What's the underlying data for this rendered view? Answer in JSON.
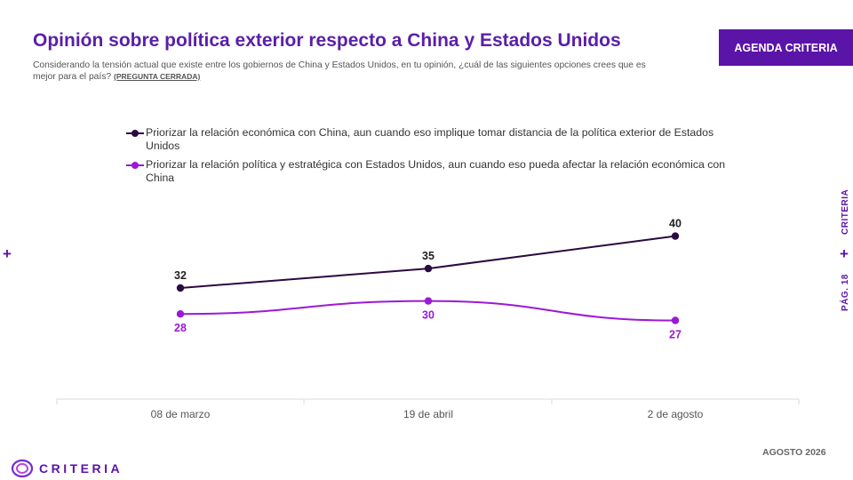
{
  "header": {
    "title": "Opinión sobre política exterior respecto a China y Estados Unidos",
    "subtitle": "Considerando la tensión actual que existe entre los gobiernos de China y Estados Unidos, en tu opinión, ¿cuál de las siguientes opciones crees que es mejor para el país?",
    "subtitle_note": "(PREGUNTA CERRADA)",
    "badge": "AGENDA CRITERIA"
  },
  "side": {
    "brand": "CRITERIA",
    "page": "PÁG. 18"
  },
  "footer": {
    "date": "AGOSTO 2026",
    "logo_text": "CRITERIA"
  },
  "colors": {
    "accent": "#5b14a8",
    "series1": "#2a0a40",
    "series2": "#9b19d6"
  },
  "chart_data": {
    "type": "line",
    "x": [
      "08 de marzo",
      "19 de abril",
      "2 de agosto"
    ],
    "series": [
      {
        "name": "Priorizar la relación económica con China, aun cuando eso implique tomar distancia de la política exterior de Estados Unidos",
        "values": [
          32,
          35,
          40
        ]
      },
      {
        "name": "Priorizar la relación política y estratégica con Estados Unidos, aun cuando eso pueda afectar la relación económica con China",
        "values": [
          28,
          30,
          27
        ]
      }
    ],
    "grid": false,
    "legend_position": "top"
  }
}
